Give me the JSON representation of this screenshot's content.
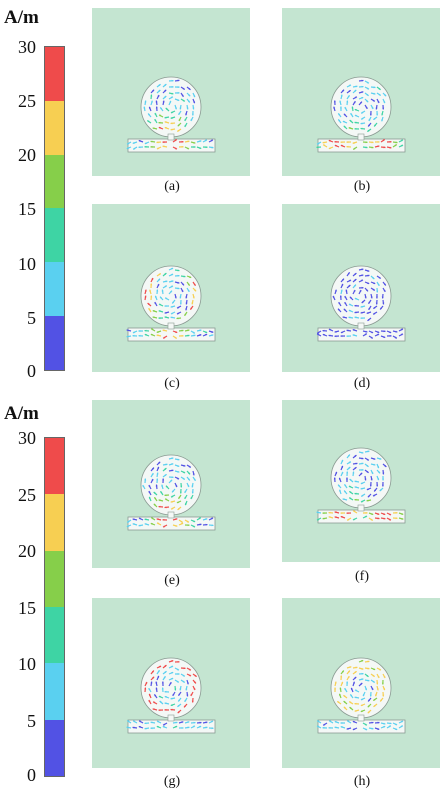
{
  "colorbars": [
    {
      "unit": "A/m",
      "ticks": [
        "30",
        "25",
        "20",
        "15",
        "10",
        "5",
        "0"
      ],
      "colors": [
        "#ef4b4b",
        "#f7cf52",
        "#86cf4a",
        "#3ed4a4",
        "#5ad0f0",
        "#5252e4"
      ]
    },
    {
      "unit": "A/m",
      "ticks": [
        "30",
        "25",
        "20",
        "15",
        "10",
        "5",
        "0"
      ],
      "colors": [
        "#ef4b4b",
        "#f7cf52",
        "#86cf4a",
        "#3ed4a4",
        "#5ad0f0",
        "#5252e4"
      ]
    }
  ],
  "panels": [
    {
      "label": "(a)"
    },
    {
      "label": "(b)"
    },
    {
      "label": "(c)"
    },
    {
      "label": "(d)"
    },
    {
      "label": "(e)"
    },
    {
      "label": "(f)"
    },
    {
      "label": "(g)"
    },
    {
      "label": "(h)"
    }
  ]
}
